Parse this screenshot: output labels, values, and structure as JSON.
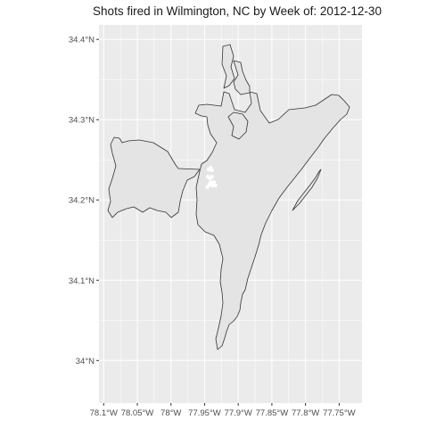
{
  "chart_data": {
    "type": "map",
    "title": "Shots fired in Wilmington, NC by Week of: 2012-12-30",
    "x_ticks": [
      {
        "value": -78.1,
        "label": "78.1°W"
      },
      {
        "value": -78.05,
        "label": "78.05°W"
      },
      {
        "value": -78.0,
        "label": "78°W"
      },
      {
        "value": -77.95,
        "label": "77.95°W"
      },
      {
        "value": -77.9,
        "label": "77.9°W"
      },
      {
        "value": -77.85,
        "label": "77.85°W"
      },
      {
        "value": -77.8,
        "label": "77.8°W"
      },
      {
        "value": -77.75,
        "label": "77.75°W"
      }
    ],
    "y_ticks": [
      {
        "value": 34.4,
        "label": "34.4°N"
      },
      {
        "value": 34.3,
        "label": "34.3°N"
      },
      {
        "value": 34.2,
        "label": "34.2°N"
      },
      {
        "value": 34.1,
        "label": "34.1°N"
      },
      {
        "value": 34.0,
        "label": "34°N"
      }
    ],
    "xlim": [
      -78.107,
      -77.716
    ],
    "ylim": [
      33.947,
      34.418
    ],
    "grid": true,
    "colors": {
      "panel_background": "#ebebeb",
      "grid": "#ffffff",
      "land_fill": "#e4e4e4",
      "land_outline": "#333333",
      "points": "#ffffff"
    },
    "points": [
      {
        "lon": -77.944,
        "lat": 34.238
      },
      {
        "lon": -77.941,
        "lat": 34.24
      },
      {
        "lon": -77.939,
        "lat": 34.237
      },
      {
        "lon": -77.945,
        "lat": 34.229
      },
      {
        "lon": -77.942,
        "lat": 34.227
      },
      {
        "lon": -77.939,
        "lat": 34.229
      },
      {
        "lon": -77.941,
        "lat": 34.222
      },
      {
        "lon": -77.943,
        "lat": 34.219
      },
      {
        "lon": -77.938,
        "lat": 34.218
      },
      {
        "lon": -77.934,
        "lat": 34.218
      },
      {
        "lon": -77.936,
        "lat": 34.222
      },
      {
        "lon": -77.946,
        "lat": 34.216
      }
    ]
  }
}
